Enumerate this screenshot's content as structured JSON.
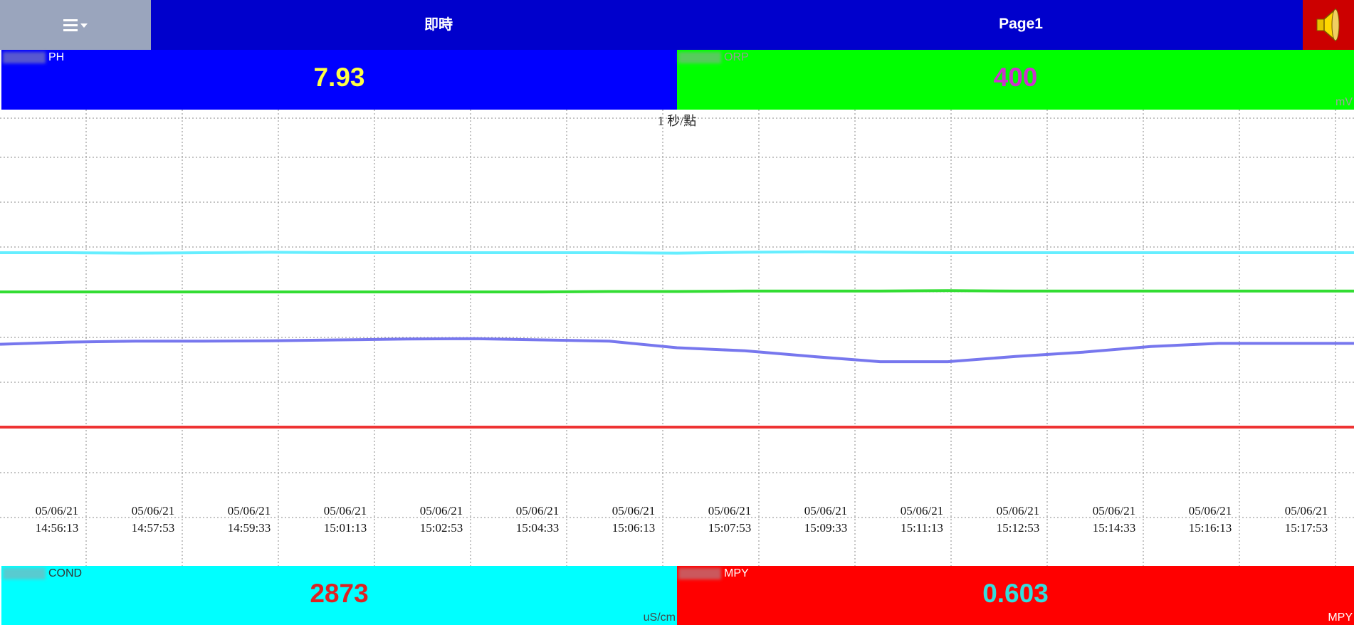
{
  "header": {
    "menu_icon": "hamburger-menu-icon",
    "left_title": "即時",
    "page_title": "Page1",
    "speaker_icon": "speaker-icon",
    "menu_color": "#9aa5bd",
    "bar_color": "#0000cc",
    "speaker_bg": "#cc0000"
  },
  "panels": {
    "ph": {
      "label": "PH",
      "value": "7.93",
      "unit": "",
      "bg": "#0000ff",
      "value_color": "#ffff44"
    },
    "orp": {
      "label": "ORP",
      "value": "400",
      "unit": "mV",
      "bg": "#00ff00",
      "value_color": "#cc33cc"
    },
    "cond": {
      "label": "COND",
      "value": "2873",
      "unit": "uS/cm",
      "bg": "#00ffff",
      "value_color": "#dd2222"
    },
    "mpy": {
      "label": "MPY",
      "value": "0.603",
      "unit": "MPY",
      "bg": "#ff0000",
      "value_color": "#33dddd"
    }
  },
  "chart_data": {
    "type": "line",
    "note": "1 秒/點",
    "x_ticks": [
      {
        "date": "05/06/21",
        "time": "14:56:13"
      },
      {
        "date": "05/06/21",
        "time": "14:57:53"
      },
      {
        "date": "05/06/21",
        "time": "14:59:33"
      },
      {
        "date": "05/06/21",
        "time": "15:01:13"
      },
      {
        "date": "05/06/21",
        "time": "15:02:53"
      },
      {
        "date": "05/06/21",
        "time": "15:04:33"
      },
      {
        "date": "05/06/21",
        "time": "15:06:13"
      },
      {
        "date": "05/06/21",
        "time": "15:07:53"
      },
      {
        "date": "05/06/21",
        "time": "15:09:33"
      },
      {
        "date": "05/06/21",
        "time": "15:11:13"
      },
      {
        "date": "05/06/21",
        "time": "15:12:53"
      },
      {
        "date": "05/06/21",
        "time": "15:14:33"
      },
      {
        "date": "05/06/21",
        "time": "15:16:13"
      },
      {
        "date": "05/06/21",
        "time": "15:17:53"
      }
    ],
    "grid": true,
    "ylim": [
      0,
      10
    ],
    "series": [
      {
        "color": "#66eeff",
        "values": [
          7.0,
          7.0,
          6.99,
          7.0,
          7.01,
          7.0,
          7.0,
          7.0,
          7.0,
          7.0,
          6.99,
          7.01,
          7.02,
          7.01,
          7.0,
          7.0,
          7.0,
          7.0,
          7.0,
          7.0,
          7.0
        ]
      },
      {
        "color": "#33dd33",
        "values": [
          6.1,
          6.1,
          6.1,
          6.1,
          6.1,
          6.1,
          6.1,
          6.1,
          6.1,
          6.11,
          6.11,
          6.12,
          6.12,
          6.12,
          6.13,
          6.12,
          6.12,
          6.12,
          6.12,
          6.12,
          6.12
        ]
      },
      {
        "color": "#7777ee",
        "values": [
          4.9,
          4.95,
          4.97,
          4.97,
          4.98,
          5.0,
          5.02,
          5.03,
          5.0,
          4.97,
          4.82,
          4.75,
          4.62,
          4.5,
          4.5,
          4.62,
          4.72,
          4.85,
          4.92,
          4.92,
          4.92
        ]
      },
      {
        "color": "#ee3333",
        "values": [
          3.0,
          3.0,
          3.0,
          3.0,
          3.0,
          3.0,
          3.0,
          3.0,
          3.0,
          3.0,
          3.0,
          3.0,
          3.0,
          3.0,
          3.0,
          3.0,
          3.0,
          3.0,
          3.0,
          3.0,
          3.0
        ]
      }
    ]
  }
}
